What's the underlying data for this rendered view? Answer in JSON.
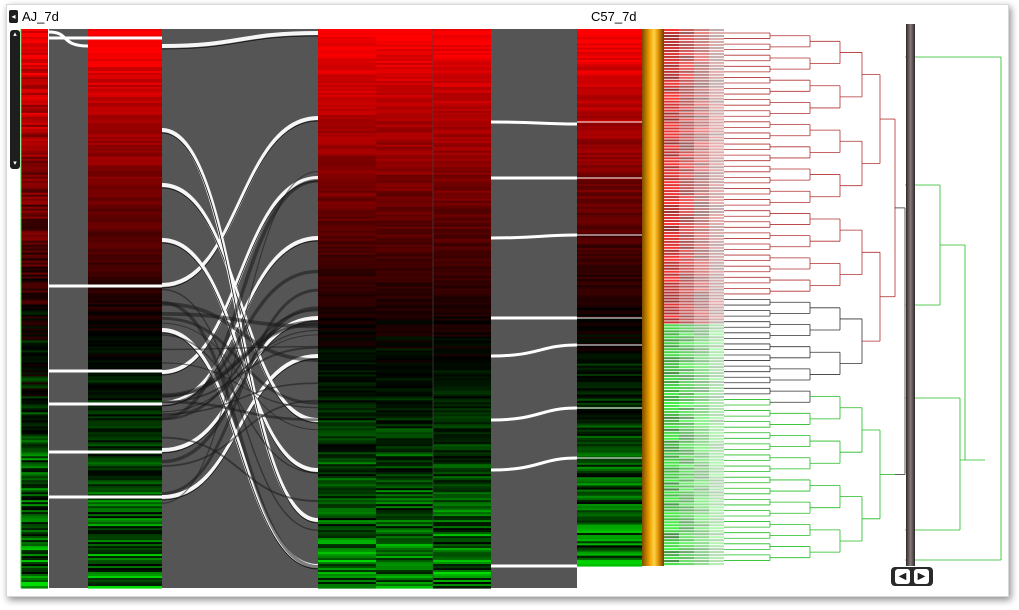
{
  "labels": {
    "left_sample": "AJ_7d",
    "right_sample": "C57_7d"
  },
  "colors": {
    "up": "#ff1a1a",
    "down": "#22dd22",
    "link": "#555555",
    "ribbon_highlight": "#ffffff",
    "mean_bar": "#f0a000",
    "tree_red": "#b03030",
    "tree_green": "#22bb22",
    "tree_dark": "#333333"
  },
  "icons": {
    "collapse": "triangle-left-icon",
    "scroll_up": "triangle-up-icon",
    "scroll_down": "triangle-down-icon",
    "nav_left": "triangle-left-icon",
    "nav_right": "triangle-right-icon"
  },
  "controls": {
    "collapse_glyph": "◂",
    "scroll_up_glyph": "▴",
    "scroll_down_glyph": "▾",
    "nav_left_glyph": "◀",
    "nav_right_glyph": "▶"
  }
}
